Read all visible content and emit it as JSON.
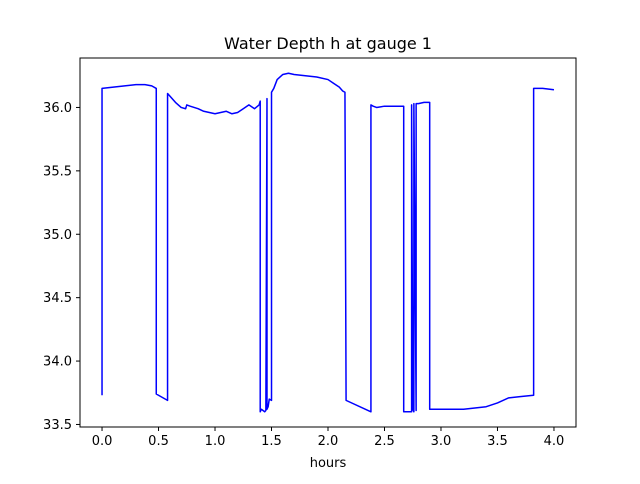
{
  "chart_data": {
    "type": "line",
    "title": "Water Depth h at gauge 1",
    "xlabel": "hours",
    "ylabel": "",
    "xlim": [
      -0.195,
      4.195
    ],
    "ylim": [
      33.48,
      36.39
    ],
    "x_ticks": [
      0.0,
      0.5,
      1.0,
      1.5,
      2.0,
      2.5,
      3.0,
      3.5,
      4.0
    ],
    "x_tick_labels": [
      "0.0",
      "0.5",
      "1.0",
      "1.5",
      "2.0",
      "2.5",
      "3.0",
      "3.5",
      "4.0"
    ],
    "y_ticks": [
      33.5,
      34.0,
      34.5,
      35.0,
      35.5,
      36.0
    ],
    "y_tick_labels": [
      "33.5",
      "34.0",
      "34.5",
      "35.0",
      "35.5",
      "36.0"
    ],
    "grid": false,
    "legend": "none",
    "series": [
      {
        "color": "#0000ff",
        "x": [
          0.0,
          0.0,
          0.1,
          0.2,
          0.3,
          0.38,
          0.44,
          0.48,
          0.48,
          0.58,
          0.58,
          0.6,
          0.65,
          0.7,
          0.74,
          0.75,
          0.78,
          0.85,
          0.9,
          1.0,
          1.05,
          1.1,
          1.15,
          1.2,
          1.25,
          1.3,
          1.35,
          1.39,
          1.4,
          1.4,
          1.41,
          1.44,
          1.45,
          1.46,
          1.46,
          1.47,
          1.48,
          1.5,
          1.5,
          1.52,
          1.55,
          1.6,
          1.65,
          1.7,
          1.8,
          1.9,
          2.0,
          2.05,
          2.1,
          2.13,
          2.15,
          2.16,
          2.38,
          2.38,
          2.4,
          2.43,
          2.5,
          2.6,
          2.65,
          2.67,
          2.67,
          2.74,
          2.74,
          2.75,
          2.76,
          2.76,
          2.78,
          2.78,
          2.8,
          2.85,
          2.9,
          2.9,
          3.0,
          3.2,
          3.4,
          3.5,
          3.6,
          3.7,
          3.82,
          3.82,
          3.9,
          4.0
        ],
        "y": [
          33.73,
          36.15,
          36.16,
          36.17,
          36.18,
          36.18,
          36.17,
          36.15,
          33.74,
          33.69,
          36.11,
          36.09,
          36.04,
          36.0,
          35.99,
          36.02,
          36.01,
          35.99,
          35.97,
          35.95,
          35.96,
          35.97,
          35.95,
          35.96,
          35.99,
          36.02,
          35.99,
          36.02,
          36.05,
          33.6,
          33.62,
          33.6,
          33.61,
          36.07,
          33.62,
          33.64,
          33.7,
          33.69,
          36.12,
          36.15,
          36.22,
          36.26,
          36.27,
          36.26,
          36.25,
          36.24,
          36.22,
          36.19,
          36.16,
          36.13,
          36.12,
          33.69,
          33.6,
          36.02,
          36.01,
          36.0,
          36.01,
          36.01,
          36.01,
          36.01,
          33.6,
          33.6,
          36.02,
          33.62,
          33.6,
          36.03,
          33.61,
          36.03,
          36.03,
          36.04,
          36.04,
          33.62,
          33.62,
          33.62,
          33.64,
          33.67,
          33.71,
          33.72,
          33.73,
          36.15,
          36.15,
          36.14
        ]
      }
    ]
  }
}
